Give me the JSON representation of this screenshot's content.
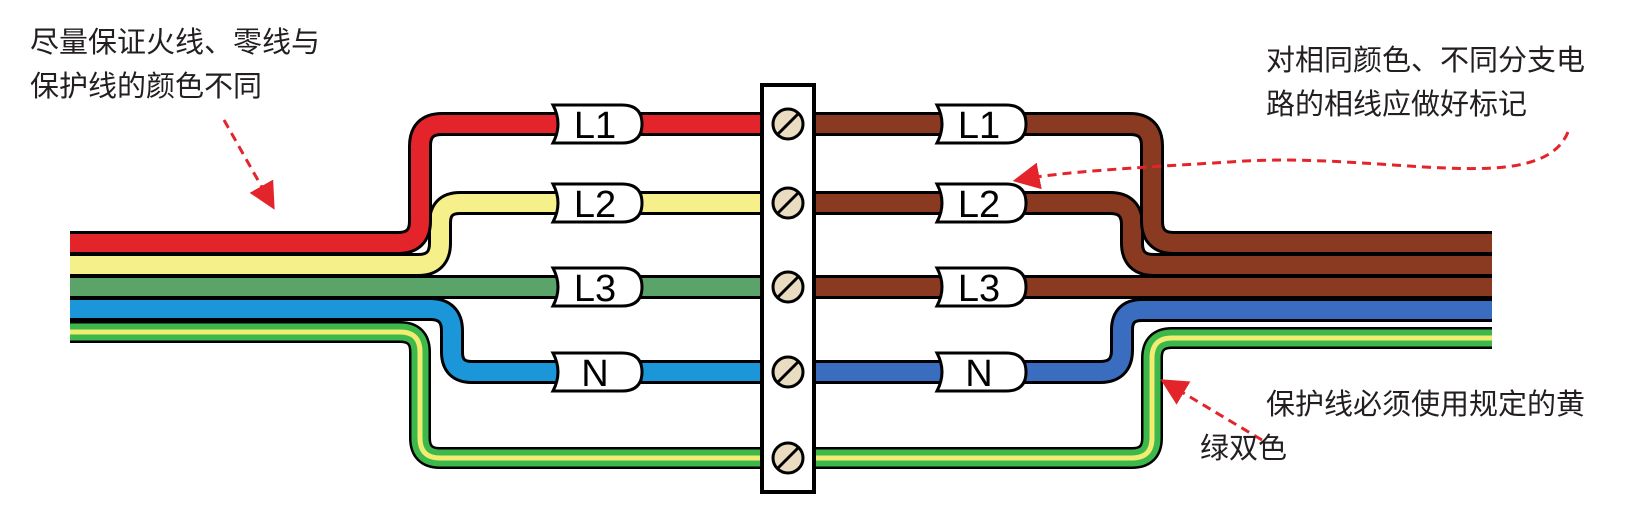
{
  "notes": {
    "left_line1": "尽量保证火线、零线与",
    "left_line2": "保护线的颜色不同",
    "right_line1": "对相同颜色、不同分支电",
    "right_line2": "路的相线应做好标记",
    "bottom_line1": "保护线必须使用规定的黄",
    "bottom_line2": "绿双色"
  },
  "tags": {
    "left": [
      "L1",
      "L2",
      "L3",
      "N"
    ],
    "right": [
      "L1",
      "L2",
      "L3",
      "N"
    ]
  },
  "colors": {
    "red": "#e3242b",
    "yellow": "#f5f08a",
    "green": "#5aa469",
    "blue": "#1b97d9",
    "brown": "#8b3a22",
    "dark_blue": "#3a6cbf",
    "pe_green": "#3db84a",
    "pe_yellow": "#f3ec72",
    "arrow": "#e3242b",
    "terminal_screw": "#e9dcc1"
  },
  "icons": [
    "terminal-block",
    "screw-icon",
    "wire-label-tag",
    "dashed-arrow"
  ]
}
